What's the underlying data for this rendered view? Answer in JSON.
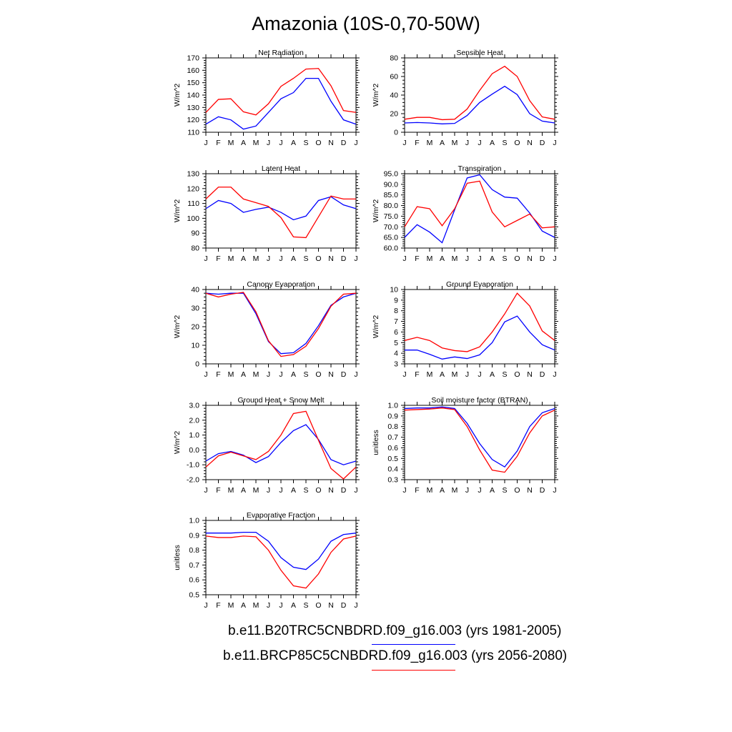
{
  "title": "Amazonia (10S-0,70-50W)",
  "colors": {
    "series1": "#0000ff",
    "series2": "#ff0000",
    "axis": "#000000"
  },
  "legend": [
    {
      "label": "b.e11.B20TRC5CNBDRD.f09_g16.003 (yrs 1981-2005)",
      "color": "#0000ff"
    },
    {
      "label": "b.e11.BRCP85C5CNBDRD.f09_g16.003 (yrs 2056-2080)",
      "color": "#ff0000"
    }
  ],
  "chart_data": [
    {
      "type": "line",
      "title": "Net Radiation",
      "ylabel": "W/m^2",
      "ylim": [
        110,
        170
      ],
      "yticks": [
        "110",
        "120",
        "130",
        "140",
        "150",
        "160",
        "170"
      ],
      "categories": [
        "J",
        "F",
        "M",
        "A",
        "M",
        "J",
        "J",
        "A",
        "S",
        "O",
        "N",
        "D",
        "J"
      ],
      "series": [
        {
          "name": "b.e11.B20TRC5CNBDRD.f09_g16.003 (yrs 1981-2005)",
          "color": "#0000ff",
          "values": [
            116.5,
            122.5,
            120,
            112.5,
            115,
            126,
            137,
            142,
            153.5,
            153.5,
            135,
            120,
            116.5
          ]
        },
        {
          "name": "b.e11.BRCP85C5CNBDRD.f09_g16.003 (yrs 2056-2080)",
          "color": "#ff0000",
          "values": [
            126,
            136.5,
            137,
            126.5,
            124,
            133,
            147,
            153.5,
            161,
            161.5,
            147.5,
            127.5,
            126
          ]
        }
      ]
    },
    {
      "type": "line",
      "title": "Sensible Heat",
      "ylabel": "W/m^2",
      "ylim": [
        0,
        80
      ],
      "yticks": [
        "0",
        "20",
        "40",
        "60",
        "80"
      ],
      "categories": [
        "J",
        "F",
        "M",
        "A",
        "M",
        "J",
        "J",
        "A",
        "S",
        "O",
        "N",
        "D",
        "J"
      ],
      "series": [
        {
          "name": "b.e11.B20TRC5CNBDRD.f09_g16.003 (yrs 1981-2005)",
          "color": "#0000ff",
          "values": [
            10,
            10.5,
            10,
            9,
            9.5,
            18,
            32,
            41,
            49.5,
            40.5,
            20,
            12,
            10
          ]
        },
        {
          "name": "b.e11.BRCP85C5CNBDRD.f09_g16.003 (yrs 2056-2080)",
          "color": "#ff0000",
          "values": [
            14,
            16,
            16,
            13.5,
            14,
            25,
            45,
            63,
            71,
            60,
            34,
            16.5,
            14
          ]
        }
      ]
    },
    {
      "type": "line",
      "title": "Latent Heat",
      "ylabel": "W/m^2",
      "ylim": [
        80,
        130
      ],
      "yticks": [
        "80",
        "90",
        "100",
        "110",
        "120",
        "130"
      ],
      "categories": [
        "J",
        "F",
        "M",
        "A",
        "M",
        "J",
        "J",
        "A",
        "S",
        "O",
        "N",
        "D",
        "J"
      ],
      "series": [
        {
          "name": "b.e11.B20TRC5CNBDRD.f09_g16.003 (yrs 1981-2005)",
          "color": "#0000ff",
          "values": [
            106.5,
            112,
            110,
            104,
            106,
            107.5,
            104,
            99,
            101.5,
            112,
            114.5,
            109,
            106.5
          ]
        },
        {
          "name": "b.e11.BRCP85C5CNBDRD.f09_g16.003 (yrs 2056-2080)",
          "color": "#ff0000",
          "values": [
            113,
            121,
            121,
            113,
            110.5,
            108,
            100.5,
            87.5,
            87,
            101,
            115,
            113,
            113
          ]
        }
      ]
    },
    {
      "type": "line",
      "title": "Transpiration",
      "ylabel": "W/m^2",
      "ylim": [
        60,
        95
      ],
      "yticks": [
        "60.0",
        "65.0",
        "70.0",
        "75.0",
        "80.0",
        "85.0",
        "90.0",
        "95.0"
      ],
      "categories": [
        "J",
        "F",
        "M",
        "A",
        "M",
        "J",
        "J",
        "A",
        "S",
        "O",
        "N",
        "D",
        "J"
      ],
      "series": [
        {
          "name": "b.e11.B20TRC5CNBDRD.f09_g16.003 (yrs 1981-2005)",
          "color": "#0000ff",
          "values": [
            65,
            71,
            67.5,
            62.5,
            78,
            93,
            94.5,
            87.5,
            84,
            83.5,
            76.5,
            68,
            65
          ]
        },
        {
          "name": "b.e11.BRCP85C5CNBDRD.f09_g16.003 (yrs 2056-2080)",
          "color": "#ff0000",
          "values": [
            70,
            79.5,
            78.5,
            70.5,
            78.5,
            90.5,
            91.5,
            77,
            70,
            73,
            76,
            69.5,
            70
          ]
        }
      ]
    },
    {
      "type": "line",
      "title": "Canopy Evaporation",
      "ylabel": "W/m^2",
      "ylim": [
        0,
        40
      ],
      "yticks": [
        "0",
        "10",
        "20",
        "30",
        "40"
      ],
      "categories": [
        "J",
        "F",
        "M",
        "A",
        "M",
        "J",
        "J",
        "A",
        "S",
        "O",
        "N",
        "D",
        "J"
      ],
      "series": [
        {
          "name": "b.e11.B20TRC5CNBDRD.f09_g16.003 (yrs 1981-2005)",
          "color": "#0000ff",
          "values": [
            38,
            37.5,
            38,
            38,
            27,
            12,
            5.5,
            6,
            11,
            20.5,
            31.5,
            36,
            38
          ]
        },
        {
          "name": "b.e11.BRCP85C5CNBDRD.f09_g16.003 (yrs 2056-2080)",
          "color": "#ff0000",
          "values": [
            38,
            36,
            37.5,
            38.5,
            28,
            12.5,
            4,
            5,
            9.5,
            19,
            31,
            37.5,
            38
          ]
        }
      ]
    },
    {
      "type": "line",
      "title": "Ground Evaporation",
      "ylabel": "W/m^2",
      "ylim": [
        3,
        10
      ],
      "yticks": [
        "3",
        "4",
        "5",
        "6",
        "7",
        "8",
        "9",
        "10"
      ],
      "categories": [
        "J",
        "F",
        "M",
        "A",
        "M",
        "J",
        "J",
        "A",
        "S",
        "O",
        "N",
        "D",
        "J"
      ],
      "series": [
        {
          "name": "b.e11.B20TRC5CNBDRD.f09_g16.003 (yrs 1981-2005)",
          "color": "#0000ff",
          "values": [
            4.3,
            4.3,
            3.9,
            3.45,
            3.65,
            3.5,
            3.85,
            5,
            6.95,
            7.5,
            6,
            4.8,
            4.3
          ]
        },
        {
          "name": "b.e11.BRCP85C5CNBDRD.f09_g16.003 (yrs 2056-2080)",
          "color": "#ff0000",
          "values": [
            5.2,
            5.5,
            5.2,
            4.5,
            4.25,
            4.15,
            4.6,
            6,
            7.7,
            9.65,
            8.45,
            6.1,
            5.2
          ]
        }
      ]
    },
    {
      "type": "line",
      "title": "Ground Heat + Snow Melt",
      "ylabel": "W/m^2",
      "ylim": [
        -2,
        3
      ],
      "yticks": [
        "-2.0",
        "-1.0",
        "0.0",
        "1.0",
        "2.0",
        "3.0"
      ],
      "categories": [
        "J",
        "F",
        "M",
        "A",
        "M",
        "J",
        "J",
        "A",
        "S",
        "O",
        "N",
        "D",
        "J"
      ],
      "series": [
        {
          "name": "b.e11.B20TRC5CNBDRD.f09_g16.003 (yrs 1981-2005)",
          "color": "#0000ff",
          "values": [
            -0.75,
            -0.25,
            -0.1,
            -0.35,
            -0.85,
            -0.45,
            0.5,
            1.3,
            1.7,
            0.7,
            -0.65,
            -1,
            -0.75
          ]
        },
        {
          "name": "b.e11.BRCP85C5CNBDRD.f09_g16.003 (yrs 2056-2080)",
          "color": "#ff0000",
          "values": [
            -1.15,
            -0.4,
            -0.15,
            -0.4,
            -0.65,
            -0.1,
            1,
            2.45,
            2.6,
            0.65,
            -1.25,
            -1.95,
            -1.15
          ]
        }
      ]
    },
    {
      "type": "line",
      "title": "Soil moisture factor (BTRAN)",
      "ylabel": "unitless",
      "ylim": [
        0.3,
        1.0
      ],
      "yticks": [
        "0.3",
        "0.4",
        "0.5",
        "0.6",
        "0.7",
        "0.8",
        "0.9",
        "1.0"
      ],
      "categories": [
        "J",
        "F",
        "M",
        "A",
        "M",
        "J",
        "J",
        "A",
        "S",
        "O",
        "N",
        "D",
        "J"
      ],
      "series": [
        {
          "name": "b.e11.B20TRC5CNBDRD.f09_g16.003 (yrs 1981-2005)",
          "color": "#0000ff",
          "values": [
            0.97,
            0.975,
            0.975,
            0.985,
            0.97,
            0.83,
            0.64,
            0.49,
            0.42,
            0.57,
            0.8,
            0.93,
            0.97
          ]
        },
        {
          "name": "b.e11.BRCP85C5CNBDRD.f09_g16.003 (yrs 2056-2080)",
          "color": "#ff0000",
          "values": [
            0.955,
            0.96,
            0.965,
            0.975,
            0.96,
            0.8,
            0.58,
            0.39,
            0.37,
            0.52,
            0.74,
            0.9,
            0.955
          ]
        }
      ]
    },
    {
      "type": "line",
      "title": "Evaporative Fraction",
      "ylabel": "unitless",
      "ylim": [
        0.5,
        1.0
      ],
      "yticks": [
        "0.5",
        "0.6",
        "0.7",
        "0.8",
        "0.9",
        "1.0"
      ],
      "categories": [
        "J",
        "F",
        "M",
        "A",
        "M",
        "J",
        "J",
        "A",
        "S",
        "O",
        "N",
        "D",
        "J"
      ],
      "series": [
        {
          "name": "b.e11.B20TRC5CNBDRD.f09_g16.003 (yrs 1981-2005)",
          "color": "#0000ff",
          "values": [
            0.915,
            0.915,
            0.915,
            0.92,
            0.92,
            0.86,
            0.75,
            0.685,
            0.67,
            0.74,
            0.86,
            0.905,
            0.915
          ]
        },
        {
          "name": "b.e11.BRCP85C5CNBDRD.f09_g16.003 (yrs 2056-2080)",
          "color": "#ff0000",
          "values": [
            0.895,
            0.885,
            0.885,
            0.895,
            0.89,
            0.8,
            0.665,
            0.56,
            0.545,
            0.64,
            0.785,
            0.875,
            0.895
          ]
        }
      ]
    }
  ]
}
